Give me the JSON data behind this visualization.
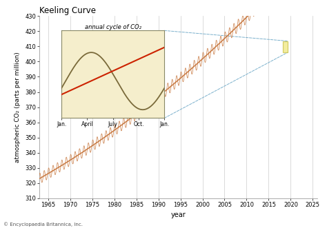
{
  "title": "Keeling Curve",
  "xlabel": "year",
  "ylabel": "atmospheric CO₂ (parts per million)",
  "xlim": [
    1963,
    2026
  ],
  "ylim": [
    310,
    430
  ],
  "xticks": [
    1965,
    1970,
    1975,
    1980,
    1985,
    1990,
    1995,
    2000,
    2005,
    2010,
    2015,
    2020,
    2025
  ],
  "yticks": [
    310,
    320,
    330,
    340,
    350,
    360,
    370,
    380,
    390,
    400,
    410,
    420,
    430
  ],
  "main_line_color": "#c87941",
  "trend_line_color": "#c87941",
  "background_color": "#ffffff",
  "grid_color": "#cccccc",
  "inset_bg_color": "#f5eecc",
  "inset_border_color": "#888866",
  "inset_seasonal_line_color": "#7a6a3a",
  "inset_trend_line_color": "#cc2200",
  "inset_xlabel_labels": [
    "Jan.",
    "April",
    "July",
    "Oct.",
    "Jan."
  ],
  "inset_title": "annual cycle of CO₂",
  "copyright": "© Encyclopaedia Britannica, Inc.",
  "highlight_box_color": "#c8c040",
  "highlight_box_fill": "#f0e880",
  "dashed_line_color": "#7ab0cc"
}
